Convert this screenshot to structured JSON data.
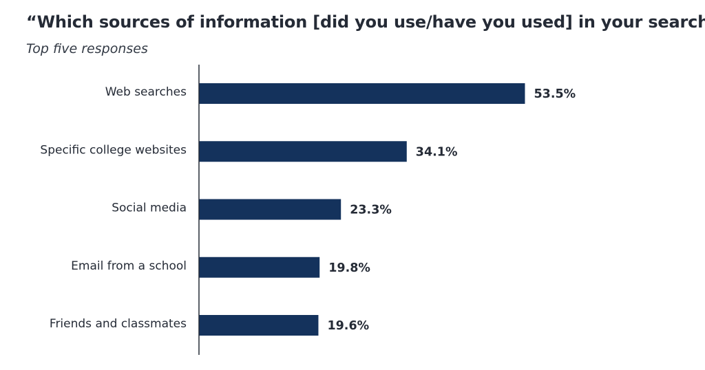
{
  "chart_data": {
    "type": "bar",
    "orientation": "horizontal",
    "title": "“Which sources of information [did you use/have you used] in your search?”",
    "subtitle": "Top five responses",
    "categories": [
      "Web searches",
      "Specific college websites",
      "Social media",
      "Email from a school",
      "Friends and classmates"
    ],
    "values": [
      53.5,
      34.1,
      23.3,
      19.8,
      19.6
    ],
    "value_labels": [
      "53.5%",
      "34.1%",
      "23.3%",
      "19.8%",
      "19.6%"
    ],
    "unit": "%",
    "xlim": [
      0,
      100
    ],
    "grid": false,
    "legend": "none",
    "bar_color": "#14325c"
  }
}
